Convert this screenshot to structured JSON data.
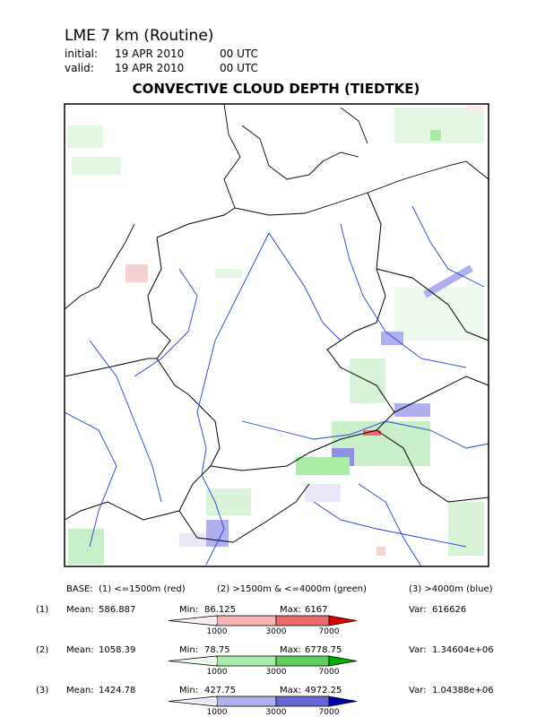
{
  "header": {
    "title": "LME 7 km (Routine)",
    "initial_label": "initial:",
    "initial_date": "19 APR 2010",
    "initial_time": "00 UTC",
    "valid_label": "valid:",
    "valid_date": "19 APR 2010",
    "valid_time": "00 UTC",
    "subtitle": "CONVECTIVE CLOUD DEPTH (TIEDTKE)"
  },
  "legend": {
    "base": [
      "BASE:",
      "(1) <=1500m (red)",
      "(2) >1500m & <=4000m (green)",
      "(3) >4000m (blue)"
    ],
    "rows": [
      {
        "index": "(1)",
        "mean_label": "Mean:",
        "mean": "586.887",
        "min_label": "Min:",
        "min": "86.125",
        "max_label": "Max:",
        "max": "6167",
        "var_label": "Var:",
        "var": "616626",
        "ticks": [
          "1000",
          "3000",
          "7000"
        ],
        "colors": [
          "#fbe8e8",
          "#f7b4b4",
          "#eb6a6a",
          "#d80000"
        ]
      },
      {
        "index": "(2)",
        "mean_label": "Mean:",
        "mean": "1058.39",
        "min_label": "Min:",
        "min": "78.75",
        "max_label": "Max:",
        "max": "6778.75",
        "var_label": "Var:",
        "var": "1.34604e+06",
        "ticks": [
          "1000",
          "3000",
          "7000"
        ],
        "colors": [
          "#e6f8e6",
          "#a8eca8",
          "#5fce5f",
          "#00b000"
        ]
      },
      {
        "index": "(3)",
        "mean_label": "Mean:",
        "mean": "1424.78",
        "min_label": "Min:",
        "min": "427.75",
        "max_label": "Max:",
        "max": "4972.25",
        "var_label": "Var:",
        "var": "1.04388e+06",
        "ticks": [
          "1000",
          "3000",
          "7000"
        ],
        "colors": [
          "#e8e8f8",
          "#b0b0ee",
          "#6666d6",
          "#0000a8"
        ]
      }
    ]
  }
}
